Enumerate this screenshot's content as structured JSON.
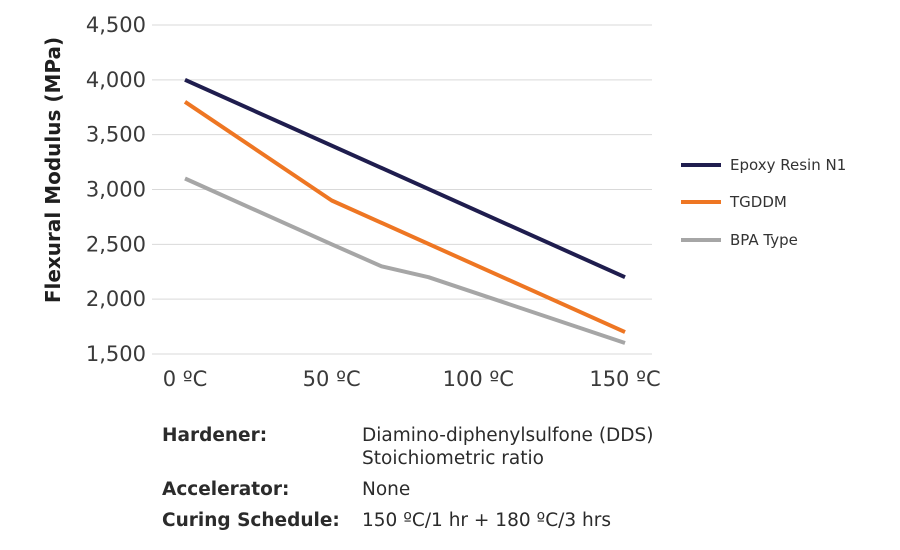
{
  "chart_data": {
    "type": "line",
    "title": "",
    "xlabel": "",
    "ylabel": "Flexural Modulus (MPa)",
    "x": [
      0,
      50,
      67,
      83,
      100,
      150
    ],
    "x_ticks": [
      0,
      50,
      100,
      150
    ],
    "x_tick_labels": [
      "0 ºC",
      "50 ºC",
      "100 ºC",
      "150 ºC"
    ],
    "xlim": [
      0,
      160
    ],
    "ylim": [
      1500,
      4500
    ],
    "y_ticks": [
      1500,
      2000,
      2500,
      3000,
      3500,
      4000,
      4500
    ],
    "y_tick_labels": [
      "1,500",
      "2,000",
      "2,500",
      "3,000",
      "3,500",
      "4,000",
      "4,500"
    ],
    "grid": true,
    "legend_position": "right",
    "series": [
      {
        "name": "Epoxy Resin N1",
        "color": "#1f1d4e",
        "x": [
          0,
          150
        ],
        "values": [
          4000,
          2200
        ]
      },
      {
        "name": "TGDDM",
        "color": "#ee7623",
        "x": [
          0,
          50,
          150
        ],
        "values": [
          3800,
          2900,
          1700
        ]
      },
      {
        "name": "BPA Type",
        "color": "#a6a6a6",
        "x": [
          0,
          50,
          67,
          83,
          150
        ],
        "values": [
          3100,
          2500,
          2300,
          2200,
          1600
        ]
      }
    ]
  },
  "notes": [
    {
      "key": "Hardener:",
      "value_lines": [
        "Diamino-diphenylsulfone (DDS)",
        "Stoichiometric ratio"
      ]
    },
    {
      "key": "Accelerator:",
      "value_lines": [
        "None"
      ]
    },
    {
      "key": "Curing Schedule:",
      "value_lines": [
        "150 ºC/1 hr + 180 ºC/3 hrs"
      ]
    }
  ]
}
